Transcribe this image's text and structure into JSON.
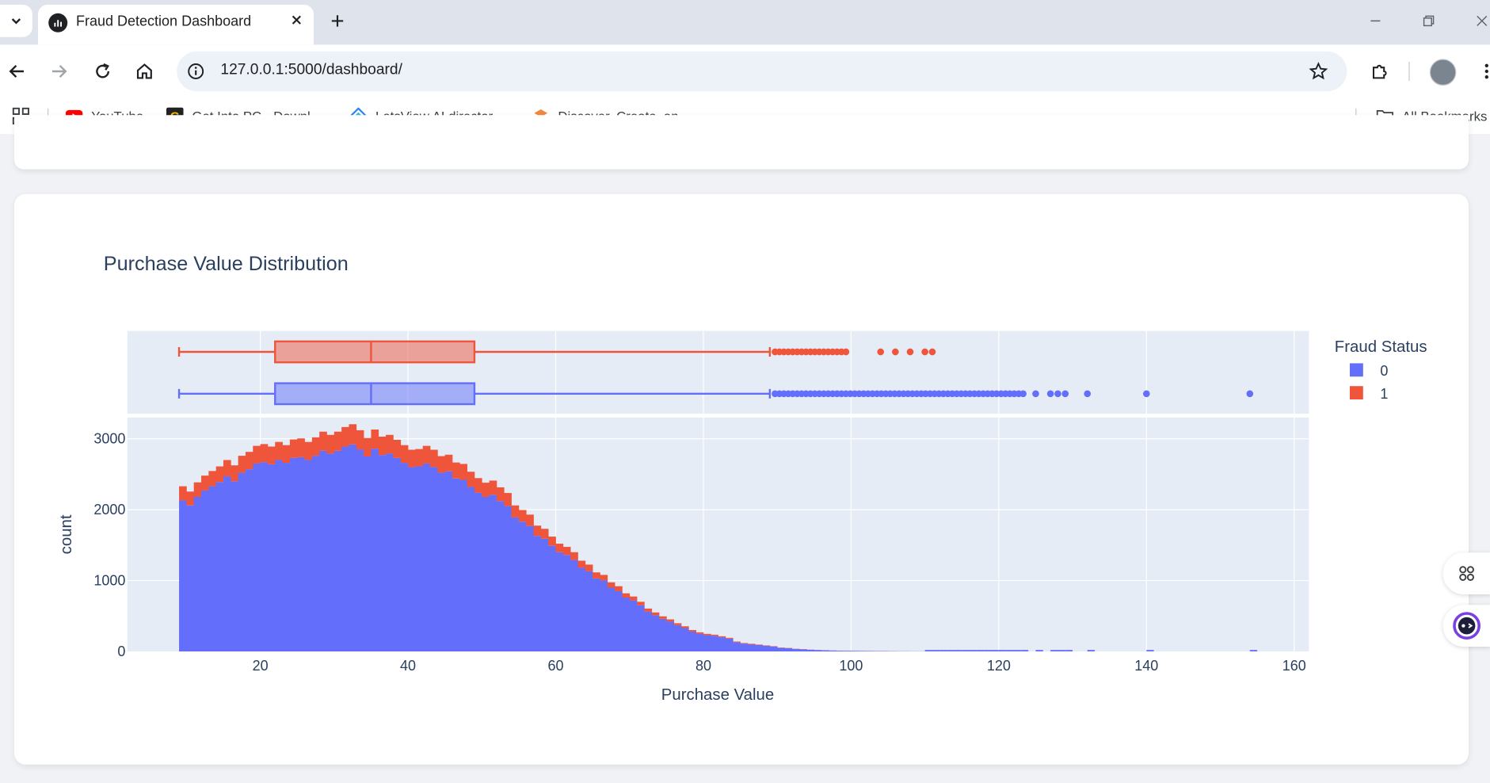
{
  "browser": {
    "tab_title": "Fraud Detection Dashboard",
    "url": "127.0.0.1:5000/dashboard/",
    "bookmarks": [
      {
        "label": "YouTube",
        "icon": "youtube-icon"
      },
      {
        "label": "Get Into PC - Downl...",
        "icon": "getintopc-icon"
      },
      {
        "label": "LetsView AI director...",
        "icon": "letsview-icon"
      },
      {
        "label": "Discover, Create, an...",
        "icon": "discover-icon"
      }
    ],
    "all_bookmarks_label": "All Bookmarks"
  },
  "colors": {
    "class0": "#636efa",
    "class1": "#ef553b",
    "plot_bg": "#e5ecf6",
    "text": "#2a3f5f"
  },
  "chart_data": {
    "type": "histogram",
    "title": "Purchase Value Distribution",
    "xlabel": "Purchase Value",
    "ylabel": "count",
    "xlim": [
      2,
      162
    ],
    "ylim": [
      0,
      3300
    ],
    "x_ticks": [
      20,
      40,
      60,
      80,
      100,
      120,
      140,
      160
    ],
    "y_ticks": [
      0,
      1000,
      2000,
      3000
    ],
    "legend_title": "Fraud Status",
    "legend_position": "top-right",
    "barmode": "stack",
    "bin_start": 9,
    "bin_width": 1,
    "series": [
      {
        "name": "0",
        "color": "#636efa",
        "counts": [
          2130,
          2060,
          2180,
          2270,
          2330,
          2390,
          2470,
          2400,
          2520,
          2570,
          2650,
          2670,
          2640,
          2700,
          2660,
          2730,
          2740,
          2700,
          2760,
          2830,
          2790,
          2830,
          2890,
          2920,
          2850,
          2750,
          2860,
          2770,
          2790,
          2730,
          2660,
          2600,
          2610,
          2650,
          2600,
          2520,
          2540,
          2440,
          2420,
          2320,
          2240,
          2180,
          2210,
          2120,
          2050,
          1890,
          1830,
          1770,
          1630,
          1590,
          1490,
          1400,
          1360,
          1290,
          1180,
          1130,
          1030,
          1000,
          900,
          850,
          760,
          720,
          650,
          560,
          510,
          460,
          420,
          370,
          330,
          280,
          250,
          230,
          220,
          200,
          180,
          130,
          110,
          100,
          90,
          80,
          70,
          50,
          45,
          35,
          30,
          24,
          20,
          16,
          13,
          10,
          9,
          8,
          7,
          6,
          5,
          5,
          4,
          3,
          3,
          2,
          2
        ]
      },
      {
        "name": "1",
        "color": "#ef553b",
        "counts": [
          200,
          195,
          205,
          210,
          215,
          220,
          230,
          225,
          240,
          245,
          250,
          255,
          250,
          255,
          250,
          260,
          265,
          255,
          260,
          270,
          265,
          270,
          275,
          285,
          270,
          260,
          270,
          260,
          265,
          255,
          250,
          245,
          245,
          250,
          245,
          235,
          235,
          225,
          225,
          215,
          205,
          200,
          200,
          195,
          185,
          170,
          165,
          160,
          145,
          140,
          130,
          120,
          115,
          110,
          100,
          95,
          85,
          80,
          75,
          70,
          60,
          55,
          50,
          45,
          40,
          35,
          32,
          28,
          25,
          22,
          20,
          18,
          16,
          14,
          12,
          10,
          9,
          8,
          7,
          6,
          5,
          4,
          4,
          3,
          3,
          2,
          2,
          2,
          1,
          1,
          1,
          1,
          1,
          1,
          1,
          1,
          1,
          0,
          0,
          0,
          0,
          0
        ]
      }
    ],
    "sparse_bins": [
      {
        "series": "0",
        "x": [
          110,
          111,
          112,
          113,
          114,
          115,
          116,
          117,
          118,
          119,
          120,
          121,
          122,
          123,
          125,
          127,
          128,
          129,
          132,
          140,
          154
        ],
        "count": 1
      }
    ],
    "box": [
      {
        "name": "1",
        "min": 9,
        "q1": 22,
        "median": 35,
        "q3": 49,
        "upper_fence": 89,
        "outliers": [
          89.7,
          90.3,
          90.9,
          91.5,
          92.1,
          92.7,
          93.3,
          93.9,
          94.5,
          95.1,
          95.7,
          96.3,
          96.9,
          97.5,
          98.1,
          98.7,
          99.3,
          104,
          106,
          108,
          110,
          111
        ]
      },
      {
        "name": "0",
        "min": 9,
        "q1": 22,
        "median": 35,
        "q3": 49,
        "upper_fence": 89,
        "outliers": [
          89.7,
          90.3,
          90.9,
          91.5,
          92.1,
          92.7,
          93.3,
          93.9,
          94.5,
          95.1,
          95.7,
          96.3,
          96.9,
          97.5,
          98.1,
          98.7,
          99.3,
          99.9,
          100.5,
          101.1,
          101.7,
          102.3,
          102.9,
          103.5,
          104.1,
          104.7,
          105.3,
          105.9,
          106.5,
          107.1,
          107.7,
          108.3,
          108.9,
          109.5,
          110.1,
          110.7,
          111.3,
          111.9,
          112.5,
          113.1,
          113.7,
          114.3,
          114.9,
          115.5,
          116.1,
          116.7,
          117.3,
          117.9,
          118.5,
          119.1,
          119.7,
          120.3,
          120.9,
          121.5,
          122.1,
          122.7,
          123.3,
          125,
          127,
          128,
          129,
          132,
          140,
          154
        ]
      }
    ]
  }
}
